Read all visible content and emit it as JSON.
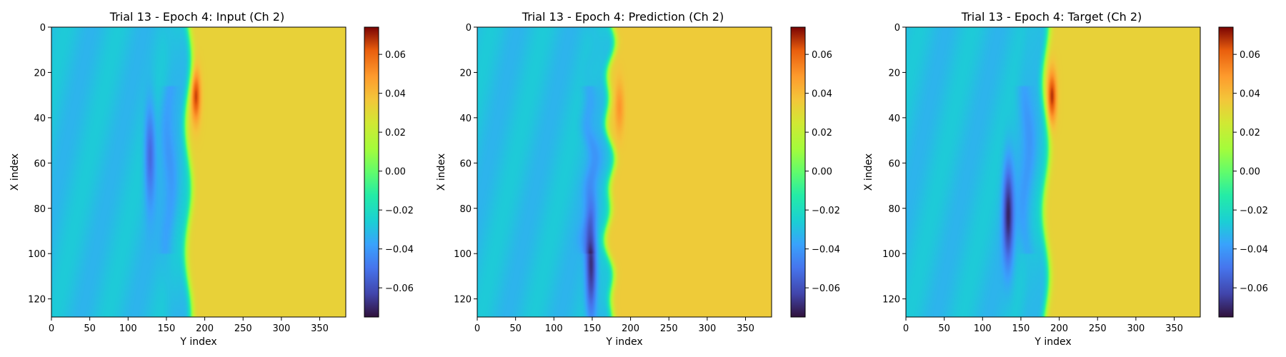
{
  "figure": {
    "panels": [
      {
        "title": "Trial 13 - Epoch 4: Input (Ch 2)",
        "xlabel": "Y index",
        "ylabel": "X index"
      },
      {
        "title": "Trial 13 - Epoch 4: Prediction (Ch 2)",
        "xlabel": "Y index",
        "ylabel": "X index"
      },
      {
        "title": "Trial 13 - Epoch 4: Target (Ch 2)",
        "xlabel": "Y index",
        "ylabel": "X index"
      }
    ]
  },
  "chart_data": [
    {
      "type": "heatmap",
      "title": "Trial 13 - Epoch 4: Input (Ch 2)",
      "xlabel": "Y index",
      "ylabel": "X index",
      "xlim": [
        0,
        384
      ],
      "ylim": [
        128,
        0
      ],
      "x_ticks": [
        0,
        50,
        100,
        150,
        200,
        250,
        300,
        350
      ],
      "y_ticks": [
        0,
        20,
        40,
        60,
        80,
        100,
        120
      ],
      "colormap": "turbo",
      "colorbar": {
        "min": -0.075,
        "max": 0.074,
        "ticks": [
          0.06,
          0.04,
          0.02,
          0.0,
          -0.02,
          -0.04,
          -0.06
        ],
        "tick_labels": [
          "0.06",
          "0.04",
          "0.02",
          "0.00",
          "−0.02",
          "−0.04",
          "−0.06"
        ]
      },
      "field": {
        "front_y": 178,
        "left_value": -0.03,
        "right_value": 0.033,
        "peak": {
          "x": 30,
          "y": 188,
          "value": 0.066
        },
        "trough": {
          "x": 55,
          "y": 128,
          "value": -0.055
        }
      }
    },
    {
      "type": "heatmap",
      "title": "Trial 13 - Epoch 4: Prediction (Ch 2)",
      "xlabel": "Y index",
      "ylabel": "X index",
      "xlim": [
        0,
        384
      ],
      "ylim": [
        128,
        0
      ],
      "x_ticks": [
        0,
        50,
        100,
        150,
        200,
        250,
        300,
        350
      ],
      "y_ticks": [
        0,
        20,
        40,
        60,
        80,
        100,
        120
      ],
      "colormap": "turbo",
      "colorbar": {
        "min": -0.075,
        "max": 0.074,
        "ticks": [
          0.06,
          0.04,
          0.02,
          0.0,
          -0.02,
          -0.04,
          -0.06
        ],
        "tick_labels": [
          "0.06",
          "0.04",
          "0.02",
          "0.00",
          "−0.02",
          "−0.04",
          "−0.06"
        ]
      },
      "field": {
        "front_y": 172,
        "left_value": -0.03,
        "right_value": 0.035,
        "peak": {
          "x": 35,
          "y": 185,
          "value": 0.05
        },
        "trough": {
          "x": 105,
          "y": 148,
          "value": -0.068
        }
      }
    },
    {
      "type": "heatmap",
      "title": "Trial 13 - Epoch 4: Target (Ch 2)",
      "xlabel": "Y index",
      "ylabel": "X index",
      "xlim": [
        0,
        384
      ],
      "ylim": [
        128,
        0
      ],
      "x_ticks": [
        0,
        50,
        100,
        150,
        200,
        250,
        300,
        350
      ],
      "y_ticks": [
        0,
        20,
        40,
        60,
        80,
        100,
        120
      ],
      "colormap": "turbo",
      "colorbar": {
        "min": -0.075,
        "max": 0.074,
        "ticks": [
          0.06,
          0.04,
          0.02,
          0.0,
          -0.02,
          -0.04,
          -0.06
        ],
        "tick_labels": [
          "0.06",
          "0.04",
          "0.02",
          "0.00",
          "−0.02",
          "−0.04",
          "−0.06"
        ]
      },
      "field": {
        "front_y": 182,
        "left_value": -0.03,
        "right_value": 0.033,
        "peak": {
          "x": 30,
          "y": 190,
          "value": 0.068
        },
        "trough": {
          "x": 82,
          "y": 133,
          "value": -0.068
        }
      }
    }
  ]
}
